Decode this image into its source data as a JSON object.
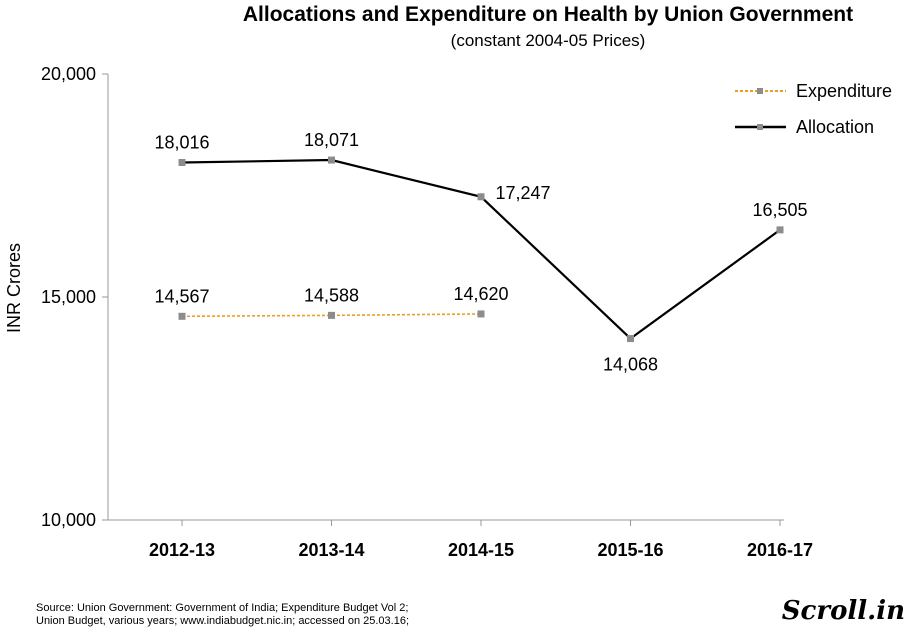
{
  "chart_data": {
    "type": "line",
    "title": "Allocations and Expenditure on Health by Union Government",
    "subtitle": "(constant 2004-05 Prices)",
    "ylabel": "INR Crores",
    "xlabel": "",
    "categories": [
      "2012-13",
      "2013-14",
      "2014-15",
      "2015-16",
      "2016-17"
    ],
    "ylim": [
      10000,
      20000
    ],
    "yticks": [
      10000,
      15000,
      20000
    ],
    "ytick_labels": [
      "10,000",
      "15,000",
      "20,000"
    ],
    "grid": false,
    "legend_position": "top-right",
    "series": [
      {
        "name": "Expenditure",
        "color": "#e8a020",
        "style": "dotted",
        "values": [
          14567,
          14588,
          14620,
          null,
          null
        ],
        "labels": [
          "14,567",
          "14,588",
          "14,620",
          "",
          ""
        ]
      },
      {
        "name": "Allocation",
        "color": "#000000",
        "style": "solid",
        "values": [
          18016,
          18071,
          17247,
          14068,
          16505
        ],
        "labels": [
          "18,016",
          "18,071",
          "17,247",
          "14,068",
          "16,505"
        ]
      }
    ],
    "marker_color": "#8c8c8c"
  },
  "source": {
    "line1": "Source: Union Government: Government of India; Expenditure Budget Vol 2;",
    "line2": "Union Budget, various years; www.indiabudget.nic.in; accessed on 25.03.16;"
  },
  "logo": "Scroll.in"
}
